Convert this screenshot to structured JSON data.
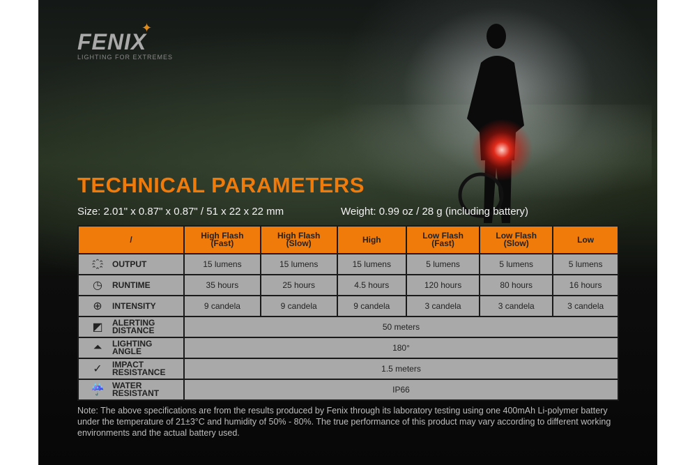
{
  "brand": {
    "name": "FENIX",
    "tagline": "LIGHTING FOR EXTREMES"
  },
  "title": "TECHNICAL PARAMETERS",
  "size": "Size: 2.01\" x 0.87\" x 0.87\" / 51 x 22 x 22 mm",
  "weight": "Weight: 0.99 oz / 28 g (including battery)",
  "colors": {
    "accent": "#f07a0a",
    "cell": "#a9a9a9"
  },
  "table": {
    "corner": "/",
    "modes": [
      [
        "High Flash",
        "(Fast)"
      ],
      [
        "High Flash",
        "(Slow)"
      ],
      [
        "High",
        ""
      ],
      [
        "Low Flash",
        "(Fast)"
      ],
      [
        "Low Flash",
        "(Slow)"
      ],
      [
        "Low",
        ""
      ]
    ],
    "rows": [
      {
        "icon": "output-burst-icon",
        "label": [
          "OUTPUT"
        ],
        "values": [
          "15 lumens",
          "15 lumens",
          "15 lumens",
          "5 lumens",
          "5 lumens",
          "5 lumens"
        ]
      },
      {
        "icon": "clock-icon",
        "label": [
          "RUNTIME"
        ],
        "values": [
          "35 hours",
          "25 hours",
          "4.5 hours",
          "120 hours",
          "80 hours",
          "16 hours"
        ]
      },
      {
        "icon": "target-icon",
        "label": [
          "INTENSITY"
        ],
        "values": [
          "9 candela",
          "9 candela",
          "9 candela",
          "3 candela",
          "3 candela",
          "3 candela"
        ]
      }
    ],
    "spans": [
      {
        "icon": "distance-icon",
        "label": [
          "ALERTING",
          "DISTANCE"
        ],
        "value": "50 meters"
      },
      {
        "icon": "angle-icon",
        "label": [
          "LIGHTING",
          "ANGLE"
        ],
        "value": "180°"
      },
      {
        "icon": "impact-icon",
        "label": [
          "IMPACT",
          "RESISTANCE"
        ],
        "value": "1.5 meters"
      },
      {
        "icon": "water-icon",
        "label": [
          "WATER",
          "RESISTANT"
        ],
        "value": "IP66"
      }
    ]
  },
  "note": "Note: The above specifications are from the results produced by Fenix through its laboratory testing using one 400mAh Li-polymer battery under the temperature of 21±3°C and humidity of 50% - 80%. The true performance of this product may vary according to different working environments and the actual battery used."
}
